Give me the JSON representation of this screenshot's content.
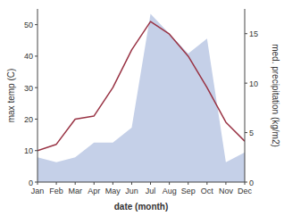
{
  "chart_data": {
    "type": "line",
    "categories": [
      "Jan",
      "Feb",
      "Mar",
      "Apr",
      "May",
      "Jun",
      "Jul",
      "Aug",
      "Sep",
      "Oct",
      "Nov",
      "Dec"
    ],
    "series": [
      {
        "type": "area",
        "color": "#c5d0e8",
        "axis": "y2",
        "values": [
          2.5,
          2,
          2.5,
          4,
          4,
          5.5,
          17,
          15,
          13,
          14.5,
          2,
          3
        ]
      },
      {
        "type": "line",
        "color": "#993344",
        "values": [
          10,
          12,
          20,
          21,
          30,
          42,
          51,
          47,
          40,
          30,
          19,
          13
        ]
      }
    ],
    "xlabel": "date (month)",
    "ylabel": "max temp (C)",
    "y2label": "med. precipitation (kg/m2)",
    "ylim": [
      0,
      55
    ],
    "yticks": [
      0,
      10,
      20,
      30,
      40,
      50
    ],
    "y2lim": [
      0,
      17.5
    ],
    "y2ticks": [
      0,
      5,
      10,
      15
    ],
    "grid": false
  }
}
